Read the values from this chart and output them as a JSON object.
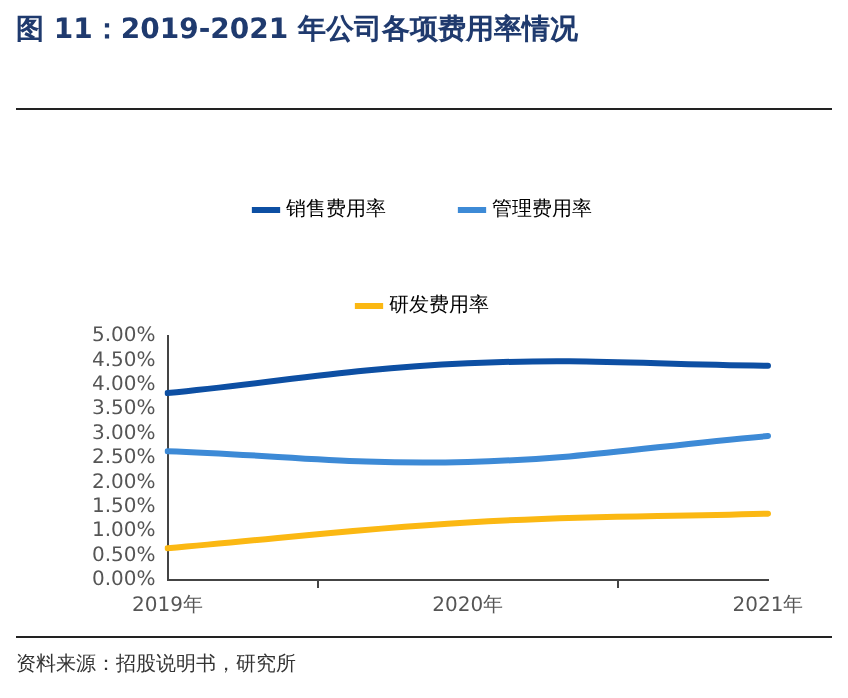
{
  "chart_data": {
    "type": "line",
    "title": "图 11：2019-2021 年公司各项费用率情况",
    "annotations": [
      "资料来源：招股说明书，研究所"
    ],
    "categories": [
      "2019年",
      "2020年",
      "2021年"
    ],
    "series": [
      {
        "name": "销售费用率",
        "color": "#0d4fa3",
        "values": [
          3.83,
          4.44,
          4.39
        ]
      },
      {
        "name": "管理费用率",
        "color": "#3d8ad6",
        "values": [
          2.64,
          2.42,
          2.95
        ]
      },
      {
        "name": "研发费用率",
        "color": "#fbb813",
        "values": [
          0.65,
          1.18,
          1.36
        ]
      }
    ],
    "ylim": [
      0,
      5
    ],
    "yticks": [
      {
        "value": 0,
        "label": "0.00%"
      },
      {
        "value": 0.5,
        "label": "0.50%"
      },
      {
        "value": 1,
        "label": "1.00%"
      },
      {
        "value": 1.5,
        "label": "1.50%"
      },
      {
        "value": 2,
        "label": "2.00%"
      },
      {
        "value": 2.5,
        "label": "2.50%"
      },
      {
        "value": 3,
        "label": "3.00%"
      },
      {
        "value": 3.5,
        "label": "3.50%"
      },
      {
        "value": 4,
        "label": "4.00%"
      },
      {
        "value": 4.5,
        "label": "4.50%"
      },
      {
        "value": 5,
        "label": "5.00%"
      }
    ],
    "grid": false,
    "legend": "top",
    "marker": "none",
    "line_style": "solid"
  }
}
